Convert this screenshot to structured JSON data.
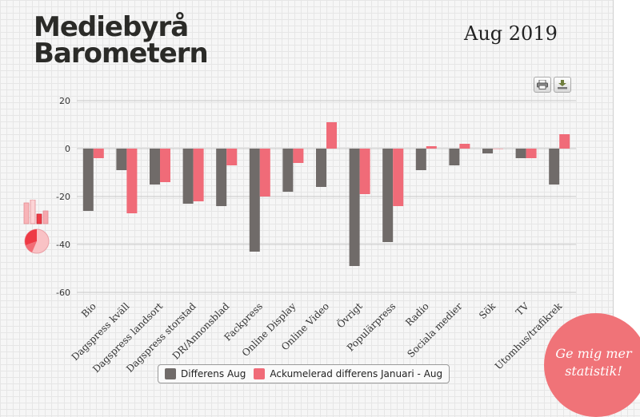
{
  "brand": {
    "line1": "Mediebyrå",
    "line2": "Barometern"
  },
  "period_label": "Aug 2019",
  "toolbar": {
    "print_icon": "printer-icon",
    "download_icon": "download-icon"
  },
  "colors": {
    "series1": "#706b69",
    "series2": "#f06b78",
    "accent": "#f07378"
  },
  "chart_data": {
    "type": "bar",
    "categories": [
      "Bio",
      "Dagspress kväll",
      "Dagspress landsort",
      "Dagspress storstad",
      "DR/Annonsblad",
      "Fackpress",
      "Online Display",
      "Online Video",
      "Övrigt",
      "Populärpress",
      "Radio",
      "Sociala medier",
      "Sök",
      "TV",
      "Utomhus/trafikreklam"
    ],
    "category_labels": [
      "Bio",
      "Dagspress kväll",
      "Dagspress landsort",
      "Dagspress storstad",
      "DR/Annonsblad",
      "Fackpress",
      "Online Display",
      "Online Video",
      "Övrigt",
      "Populärpress",
      "Radio",
      "Sociala medier",
      "Sök",
      "TV",
      "Utomhus/trafikrek"
    ],
    "series": [
      {
        "name": "Differens Aug",
        "values": [
          -26,
          -9,
          -15,
          -23,
          -24,
          -43,
          -18,
          -16,
          -49,
          -39,
          -9,
          -7,
          -2,
          -4,
          -15
        ]
      },
      {
        "name": "Ackumelerad differens Januari - Aug",
        "values": [
          -4,
          -27,
          -14,
          -22,
          -7,
          -20,
          -6,
          11,
          -19,
          -24,
          1,
          2,
          0,
          -4,
          6
        ]
      }
    ],
    "yticks": [
      20,
      0,
      -20,
      -40,
      -60
    ],
    "ylim": [
      -60,
      20
    ],
    "grid": true,
    "legend_position": "bottom-center"
  },
  "cta": {
    "line1": "Ge mig mer",
    "line2": "statistik!"
  }
}
